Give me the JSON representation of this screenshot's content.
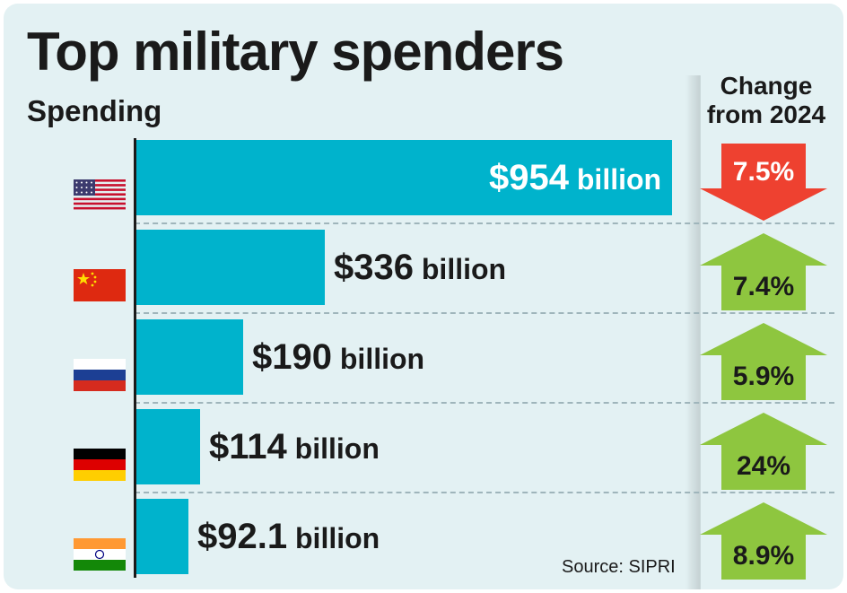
{
  "chart_data": {
    "type": "bar",
    "orientation": "horizontal",
    "title": "Top military spenders",
    "xlabel": "Spending",
    "value_unit": "billion USD",
    "categories": [
      "USA",
      "China",
      "Russia",
      "Germany",
      "India"
    ],
    "values": [
      954,
      336,
      190,
      114,
      92.1
    ],
    "value_labels": [
      {
        "amount": "$954",
        "unit": "billion"
      },
      {
        "amount": "$336",
        "unit": "billion"
      },
      {
        "amount": "$190",
        "unit": "billion"
      },
      {
        "amount": "$114",
        "unit": "billion"
      },
      {
        "amount": "$92.1",
        "unit": "billion"
      }
    ],
    "change": {
      "title_line1": "Change",
      "title_line2": "from 2024",
      "values": [
        -7.5,
        7.4,
        5.9,
        24,
        8.9
      ],
      "labels": [
        "7.5%",
        "7.4%",
        "5.9%",
        "24%",
        "8.9%"
      ],
      "directions": [
        "down",
        "up",
        "up",
        "up",
        "up"
      ]
    },
    "xlim": [
      0,
      954
    ],
    "source": "Source: SIPRI"
  },
  "colors": {
    "background": "#e3f1f3",
    "bar": "#00b3cc",
    "increase": "#8ec63f",
    "decrease": "#ee4130",
    "text": "#1a1a1a"
  },
  "flag_icons": [
    "usa-flag-icon",
    "china-flag-icon",
    "russia-flag-icon",
    "germany-flag-icon",
    "india-flag-icon"
  ]
}
